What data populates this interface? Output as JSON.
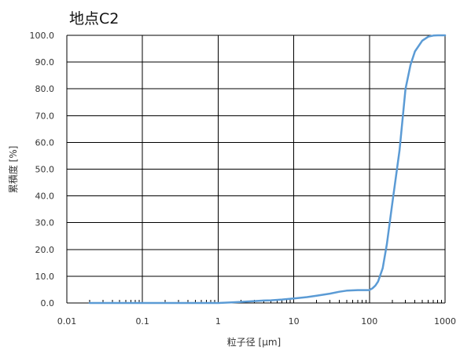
{
  "chart_data": {
    "type": "line",
    "title": "地点C2",
    "xlabel": "粒子径 [μm]",
    "ylabel": "累積度 [%]",
    "x_scale": "log",
    "xlim": [
      0.01,
      1000
    ],
    "ylim": [
      0,
      100
    ],
    "grid": true,
    "legend": "none",
    "x_ticks": [
      0.01,
      0.1,
      1,
      10,
      100,
      1000
    ],
    "x_tick_labels": [
      "0.01",
      "0.1",
      "1",
      "10",
      "100",
      "1000"
    ],
    "y_ticks": [
      0,
      10,
      20,
      30,
      40,
      50,
      60,
      70,
      80,
      90,
      100
    ],
    "y_tick_labels": [
      "0.0",
      "10.0",
      "20.0",
      "30.0",
      "40.0",
      "50.0",
      "60.0",
      "70.0",
      "80.0",
      "90.0",
      "100.0"
    ],
    "series": [
      {
        "color": "#5b9bd5",
        "x": [
          0.02,
          0.05,
          0.1,
          0.3,
          1,
          1.5,
          2,
          3,
          4,
          5,
          7,
          10,
          15,
          20,
          30,
          40,
          50,
          70,
          100,
          110,
          120,
          130,
          150,
          170,
          200,
          250,
          300,
          350,
          400,
          500,
          600,
          700,
          800,
          900,
          1000
        ],
        "y": [
          0,
          0,
          0,
          0,
          0,
          0.2,
          0.4,
          0.7,
          0.9,
          1.0,
          1.3,
          1.7,
          2.2,
          2.7,
          3.5,
          4.2,
          4.6,
          4.8,
          4.8,
          5.5,
          6.5,
          8,
          13,
          22,
          37,
          57,
          80,
          89,
          94,
          98,
          99.5,
          99.9,
          100,
          100,
          100
        ]
      }
    ]
  }
}
